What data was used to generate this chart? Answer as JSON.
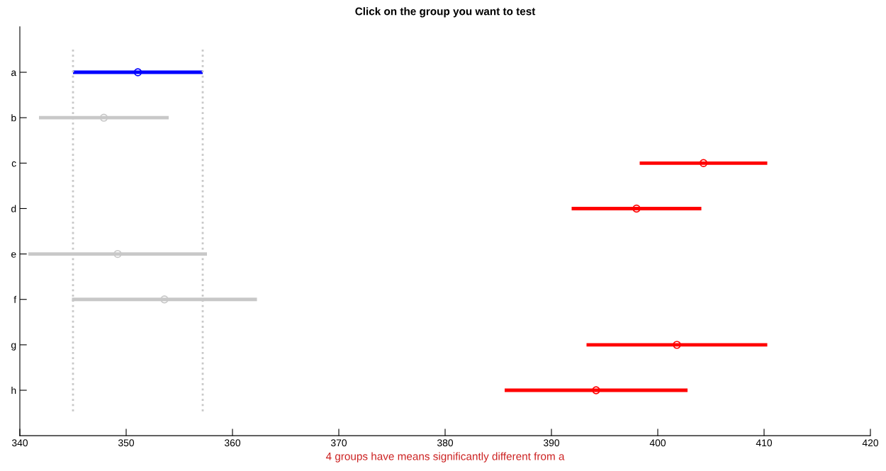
{
  "chart_data": {
    "type": "scatter",
    "orientation": "horizontal",
    "title": "Click on the group you want to test",
    "xlabel": "4 groups have means significantly different from a",
    "categories": [
      "a",
      "b",
      "c",
      "d",
      "e",
      "f",
      "g",
      "h"
    ],
    "values": [
      351.1,
      347.9,
      404.3,
      398.0,
      349.2,
      353.6,
      401.8,
      394.2
    ],
    "errors": [
      6.1,
      6.1,
      6.0,
      6.1,
      8.4,
      8.7,
      8.5,
      8.6
    ],
    "colors": [
      "#0000ff",
      "#c8c8c8",
      "#ff0000",
      "#ff0000",
      "#c8c8c8",
      "#c8c8c8",
      "#ff0000",
      "#ff0000"
    ],
    "marker": "circle",
    "xlim": [
      340,
      420
    ],
    "xticks": [
      340,
      350,
      360,
      370,
      380,
      390,
      400,
      410,
      420
    ],
    "ref_lines": [
      {
        "axis": "x",
        "value": 345.0,
        "color": "#c8c8c8",
        "line_style": "dotted"
      },
      {
        "axis": "x",
        "value": 357.2,
        "color": "#c8c8c8",
        "line_style": "dotted"
      }
    ],
    "grid": false
  }
}
